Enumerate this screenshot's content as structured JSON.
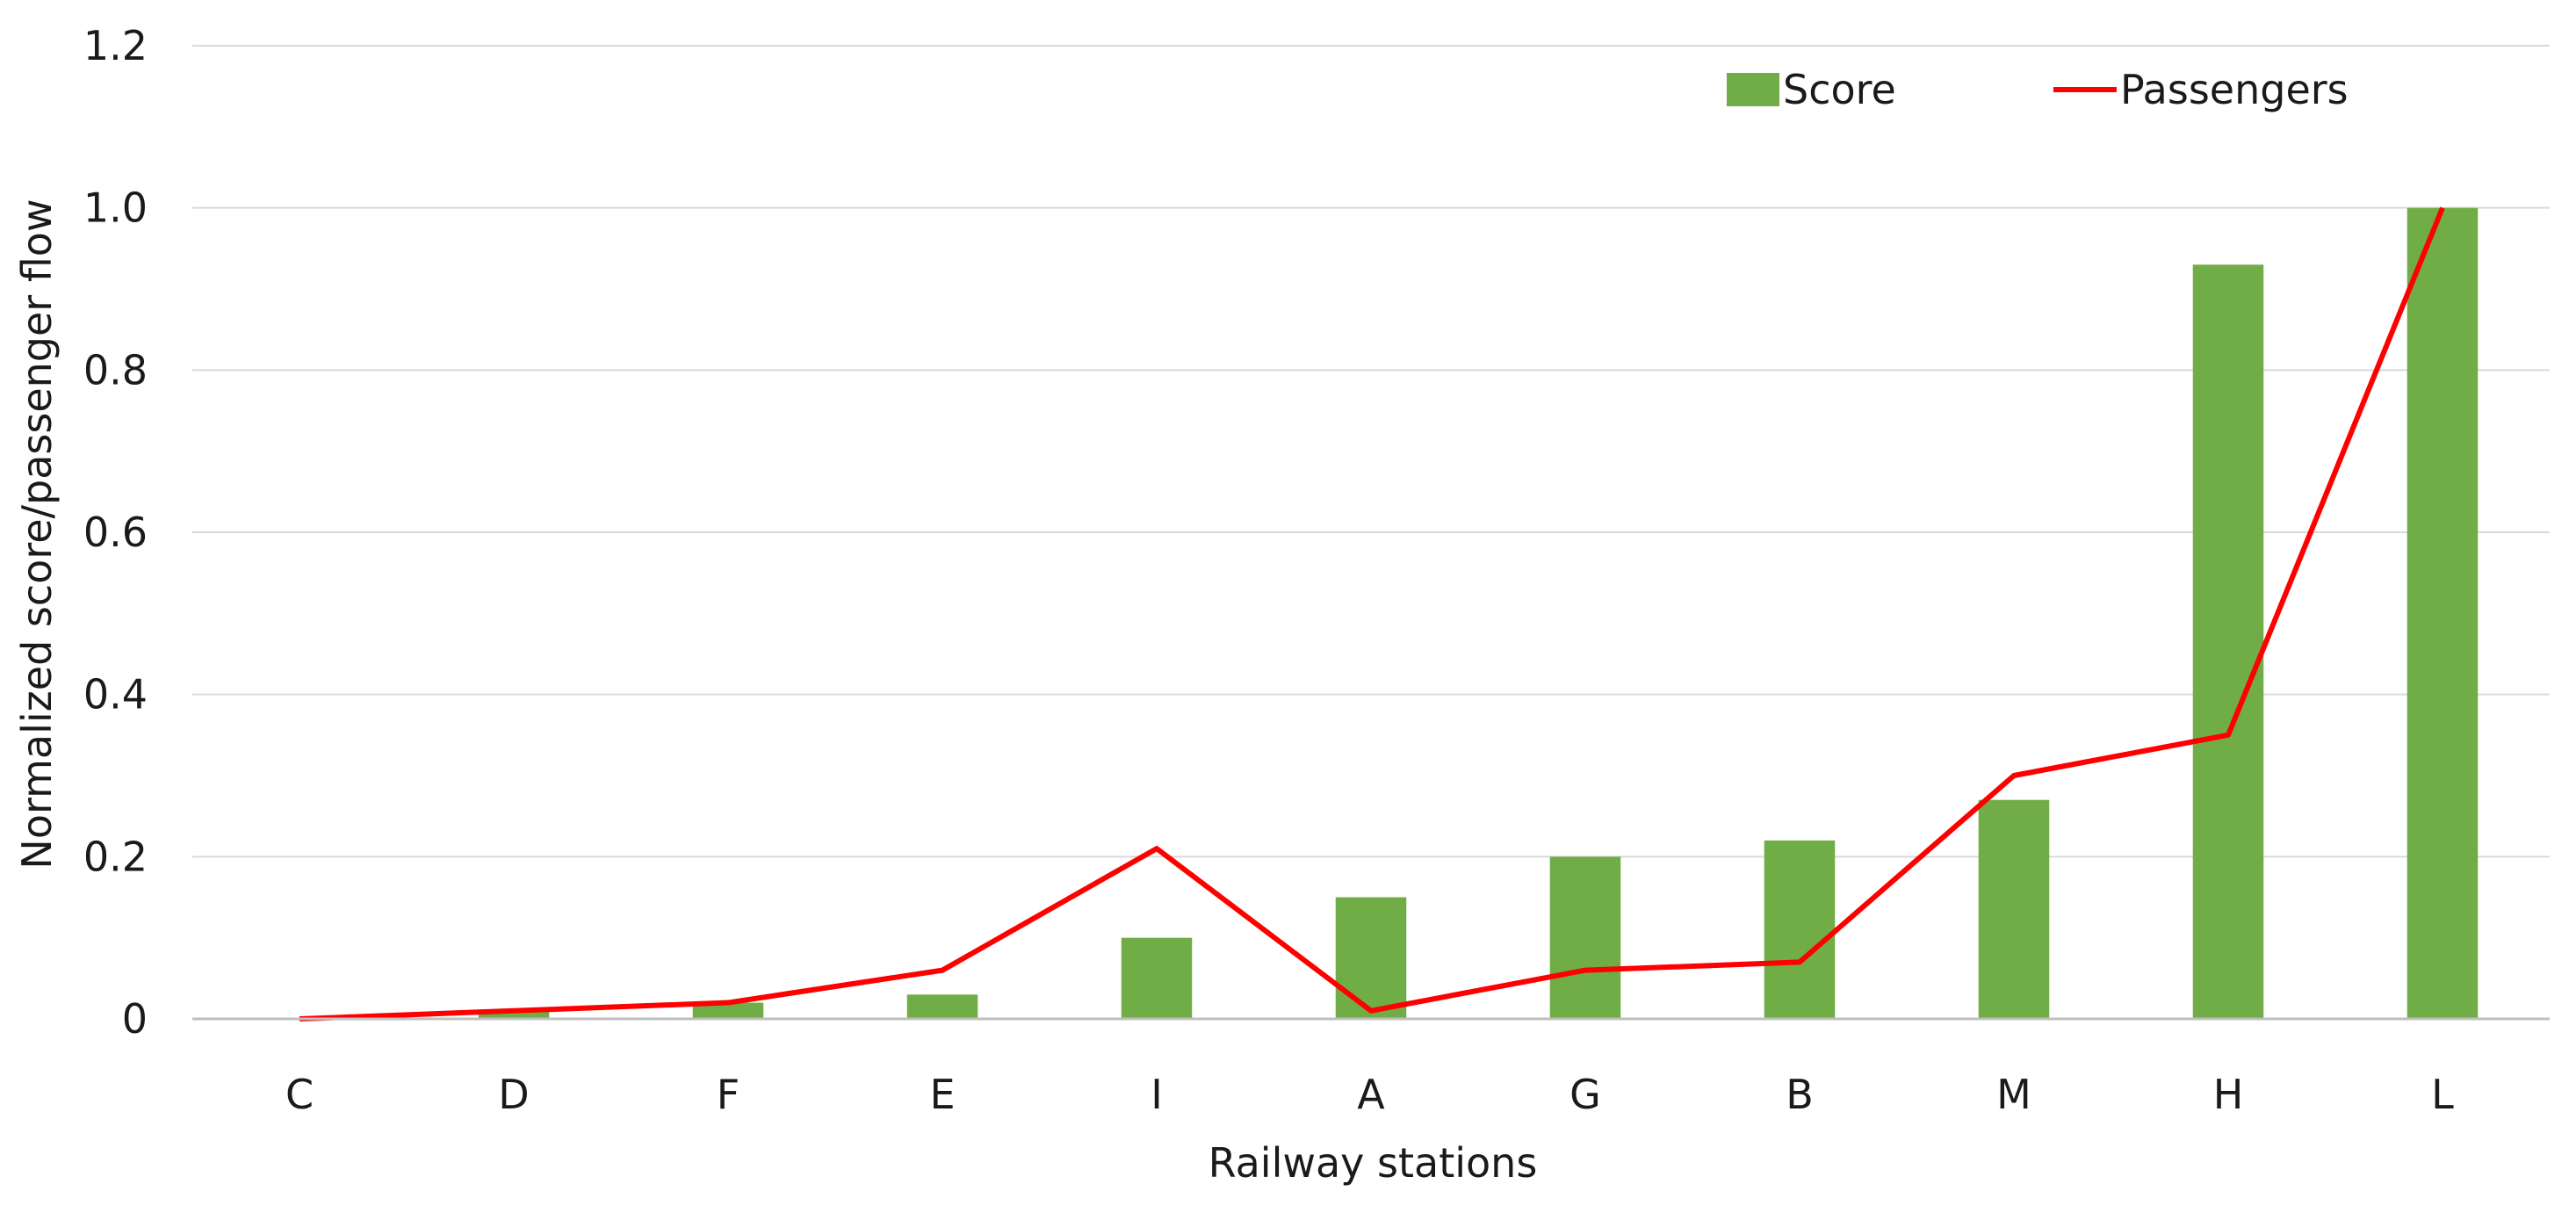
{
  "chart_data": {
    "type": "bar",
    "title": "",
    "xlabel": "Railway stations",
    "ylabel": "Normalized score/passenger flow",
    "categories": [
      "C",
      "D",
      "F",
      "E",
      "I",
      "A",
      "G",
      "B",
      "M",
      "H",
      "L"
    ],
    "ylim": [
      0,
      1.2
    ],
    "yticks": [
      0,
      0.2,
      0.4,
      0.6,
      0.8,
      1.0,
      1.2
    ],
    "ytick_labels": [
      "0",
      "0.2",
      "0.4",
      "0.6",
      "0.8",
      "1.0",
      "1.2"
    ],
    "grid": true,
    "legend_position": "top-right",
    "series": [
      {
        "name": "Score",
        "type": "bar",
        "color": "#70ad47",
        "values": [
          0,
          0.01,
          0.02,
          0.03,
          0.1,
          0.15,
          0.2,
          0.22,
          0.27,
          0.93,
          1.0
        ]
      },
      {
        "name": "Passengers",
        "type": "line",
        "color": "#ff0000",
        "values": [
          0,
          0.01,
          0.02,
          0.06,
          0.21,
          0.01,
          0.06,
          0.07,
          0.3,
          0.35,
          1.0
        ]
      }
    ]
  }
}
